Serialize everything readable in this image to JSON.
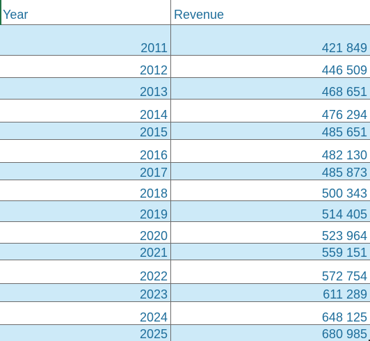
{
  "header": {
    "year": "Year",
    "revenue": "Revenue"
  },
  "rows": [
    {
      "year": "2011",
      "revenue": "421 849"
    },
    {
      "year": "2012",
      "revenue": "446 509"
    },
    {
      "year": "2013",
      "revenue": "468 651"
    },
    {
      "year": "2014",
      "revenue": "476 294"
    },
    {
      "year": "2015",
      "revenue": "485 651"
    },
    {
      "year": "2016",
      "revenue": "482 130"
    },
    {
      "year": "2017",
      "revenue": "485 873"
    },
    {
      "year": "2018",
      "revenue": "500 343"
    },
    {
      "year": "2019",
      "revenue": "514 405"
    },
    {
      "year": "2020",
      "revenue": "523 964"
    },
    {
      "year": "2021",
      "revenue": "559 151"
    },
    {
      "year": "2022",
      "revenue": "572 754"
    },
    {
      "year": "2023",
      "revenue": "611 289"
    },
    {
      "year": "2024",
      "revenue": "648 125"
    },
    {
      "year": "2025",
      "revenue": "680 985"
    }
  ],
  "colors": {
    "text": "#1f6e9b",
    "band": "#cdeaf8",
    "grid": "#6b6b6b",
    "active_cell_border": "#217346"
  }
}
